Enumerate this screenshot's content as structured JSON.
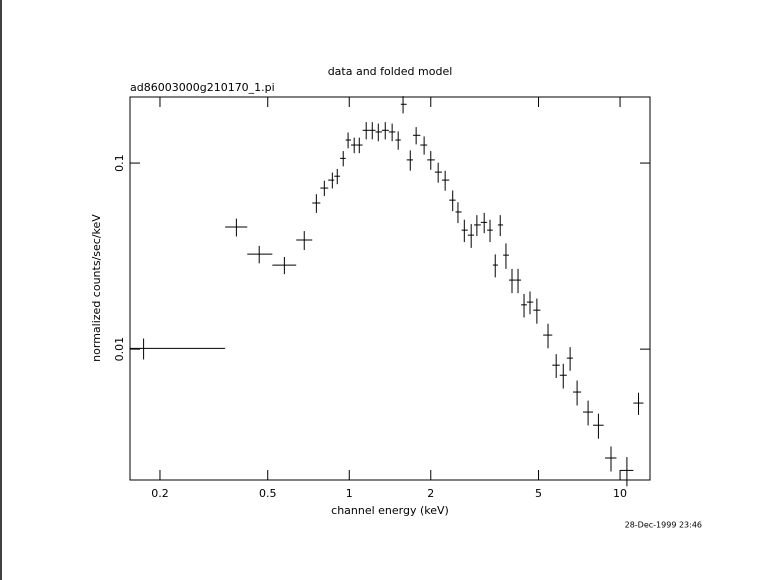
{
  "chart_data": {
    "type": "scatter",
    "title": "data and folded model",
    "subtitle": "ad86003000g210170_1.pi",
    "x_label": "channel energy (keV)",
    "y_label": "normalized counts/sec/keV",
    "timestamp": "28-Dec-1999 23:46",
    "xlog": true,
    "ylog": true,
    "color": "#000000",
    "xlim": [
      0.155,
      12.9
    ],
    "ylim": [
      0.00198,
      0.2265
    ],
    "xticks": [
      0.2,
      0.5,
      1,
      2,
      5,
      10
    ],
    "yticks": [
      0.01,
      0.1
    ],
    "x": [
      0.174,
      0.383,
      0.465,
      0.576,
      0.682,
      0.756,
      0.809,
      0.866,
      0.903,
      0.95,
      0.99,
      1.043,
      1.089,
      1.155,
      1.216,
      1.28,
      1.358,
      1.44,
      1.516,
      1.58,
      1.68,
      1.766,
      1.89,
      2.0,
      2.13,
      2.26,
      2.41,
      2.52,
      2.66,
      2.82,
      2.96,
      3.15,
      3.31,
      3.46,
      3.61,
      3.79,
      3.99,
      4.2,
      4.42,
      4.65,
      4.93,
      5.42,
      5.81,
      6.17,
      6.54,
      6.94,
      7.62,
      8.32,
      9.26,
      10.6,
      11.7
    ],
    "x_low": [
      0.155,
      0.348,
      0.42,
      0.52,
      0.637,
      0.73,
      0.782,
      0.836,
      0.88,
      0.925,
      0.97,
      1.015,
      1.065,
      1.12,
      1.185,
      1.25,
      1.32,
      1.4,
      1.48,
      1.55,
      1.63,
      1.72,
      1.83,
      1.94,
      2.07,
      2.2,
      2.34,
      2.47,
      2.6,
      2.74,
      2.89,
      3.06,
      3.23,
      3.39,
      3.54,
      3.7,
      3.89,
      4.1,
      4.31,
      4.53,
      4.78,
      5.2,
      5.62,
      5.99,
      6.36,
      6.7,
      7.3,
      7.95,
      8.8,
      10.0,
      11.2
    ],
    "x_high": [
      0.348,
      0.42,
      0.52,
      0.637,
      0.73,
      0.782,
      0.836,
      0.88,
      0.925,
      0.97,
      1.015,
      1.065,
      1.12,
      1.185,
      1.25,
      1.32,
      1.4,
      1.48,
      1.55,
      1.63,
      1.72,
      1.83,
      1.94,
      2.07,
      2.2,
      2.34,
      2.47,
      2.6,
      2.74,
      2.89,
      3.06,
      3.23,
      3.39,
      3.54,
      3.7,
      3.89,
      4.1,
      4.31,
      4.53,
      4.78,
      5.08,
      5.62,
      5.99,
      6.36,
      6.7,
      7.18,
      7.95,
      8.7,
      9.7,
      11.2,
      12.2
    ],
    "values": [
      0.0101,
      0.0453,
      0.0324,
      0.0283,
      0.0386,
      0.061,
      0.0734,
      0.081,
      0.085,
      0.106,
      0.133,
      0.125,
      0.125,
      0.15,
      0.15,
      0.147,
      0.15,
      0.147,
      0.133,
      0.207,
      0.104,
      0.141,
      0.125,
      0.104,
      0.0894,
      0.081,
      0.0632,
      0.0546,
      0.0436,
      0.041,
      0.0465,
      0.048,
      0.0436,
      0.0283,
      0.0465,
      0.032,
      0.0235,
      0.0235,
      0.0173,
      0.0179,
      0.0162,
      0.0119,
      0.0082,
      0.00724,
      0.00895,
      0.00588,
      0.00459,
      0.0039,
      0.0026,
      0.00223,
      0.00513
    ],
    "yerr": [
      0.0013,
      0.005,
      0.0035,
      0.003,
      0.0045,
      0.007,
      0.007,
      0.008,
      0.008,
      0.01,
      0.013,
      0.012,
      0.012,
      0.016,
      0.016,
      0.016,
      0.016,
      0.016,
      0.015,
      0.022,
      0.013,
      0.015,
      0.014,
      0.012,
      0.011,
      0.01,
      0.008,
      0.007,
      0.006,
      0.006,
      0.006,
      0.006,
      0.006,
      0.004,
      0.006,
      0.005,
      0.0035,
      0.0035,
      0.0025,
      0.0025,
      0.0025,
      0.0018,
      0.0012,
      0.0011,
      0.0013,
      0.0009,
      0.0007,
      0.0006,
      0.0004,
      0.0004,
      0.0007
    ]
  }
}
